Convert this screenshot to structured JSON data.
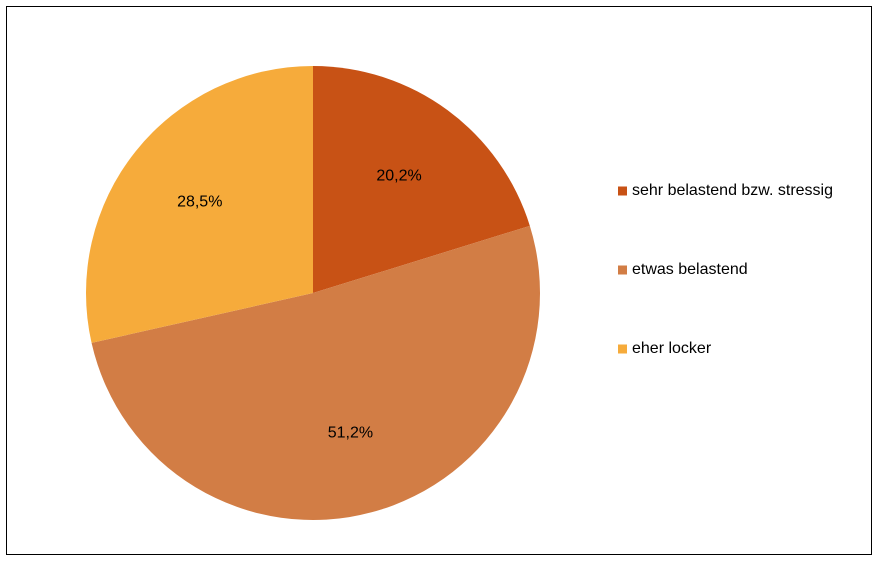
{
  "chart_data": {
    "type": "pie",
    "title": "",
    "legend_position": "right",
    "start_angle_deg": 0,
    "direction": "clockwise",
    "slices": [
      {
        "label": "sehr belastend bzw. stressig",
        "value": 20.2,
        "value_label": "20,2%",
        "color": "#C85215"
      },
      {
        "label": "etwas belastend",
        "value": 51.2,
        "value_label": "51,2%",
        "color": "#D27D45"
      },
      {
        "label": "eher locker",
        "value": 28.5,
        "value_label": "28,5%",
        "color": "#F6AB3B"
      }
    ]
  }
}
